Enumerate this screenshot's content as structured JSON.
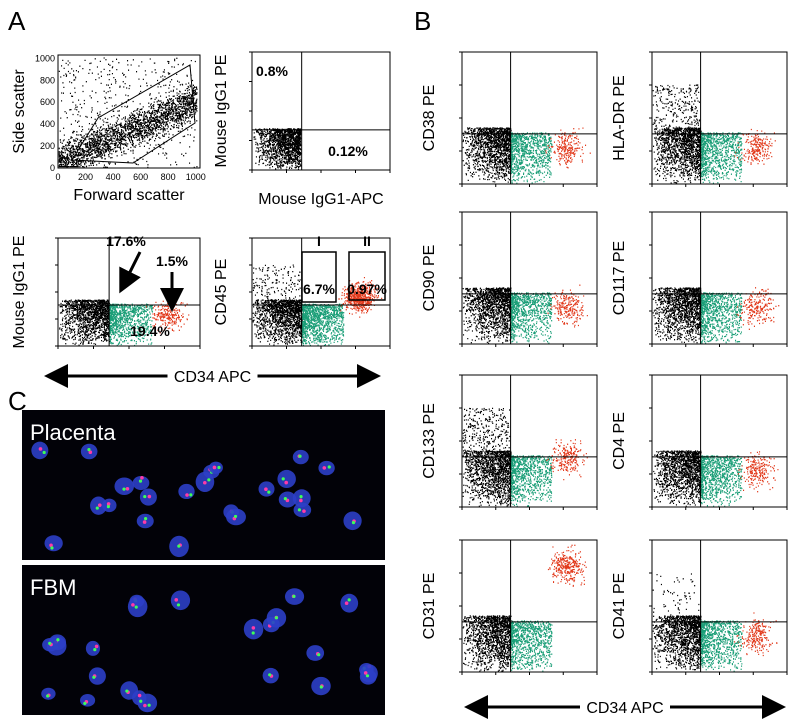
{
  "panels": {
    "A": {
      "label": "A",
      "plots": [
        {
          "ylabel": "Side scatter",
          "xlabel": "Forward scatter",
          "xticks": [
            "0",
            "200",
            "400",
            "600",
            "800",
            "1000"
          ],
          "yticks": [
            "0",
            "200",
            "400",
            "600",
            "800",
            "1000"
          ]
        },
        {
          "ylabel": "Mouse IgG1 PE",
          "xlabel": "Mouse IgG1-APC",
          "annotations": [
            "0.8%",
            "0.12%"
          ]
        },
        {
          "ylabel": "Mouse IgG1 PE",
          "annotations": [
            "17.6%",
            "1.5%",
            "19.4%"
          ]
        },
        {
          "ylabel": "CD45 PE",
          "annotations": [
            "I",
            "II",
            "6.7%",
            "0.97%"
          ]
        }
      ],
      "axis_label": "CD34 APC"
    },
    "B": {
      "label": "B",
      "plots": [
        {
          "ylabel": "CD38 PE"
        },
        {
          "ylabel": "HLA-DR PE"
        },
        {
          "ylabel": "CD90 PE"
        },
        {
          "ylabel": "CD117 PE"
        },
        {
          "ylabel": "CD133 PE"
        },
        {
          "ylabel": "CD4 PE"
        },
        {
          "ylabel": "CD31 PE"
        },
        {
          "ylabel": "CD41 PE"
        }
      ],
      "axis_label": "CD34 APC"
    },
    "C": {
      "label": "C",
      "images": [
        "Placenta",
        "FBM"
      ]
    },
    "log_ticks": {
      "base": "10",
      "exponents": [
        "0",
        "1",
        "2",
        "3",
        "4"
      ]
    }
  }
}
